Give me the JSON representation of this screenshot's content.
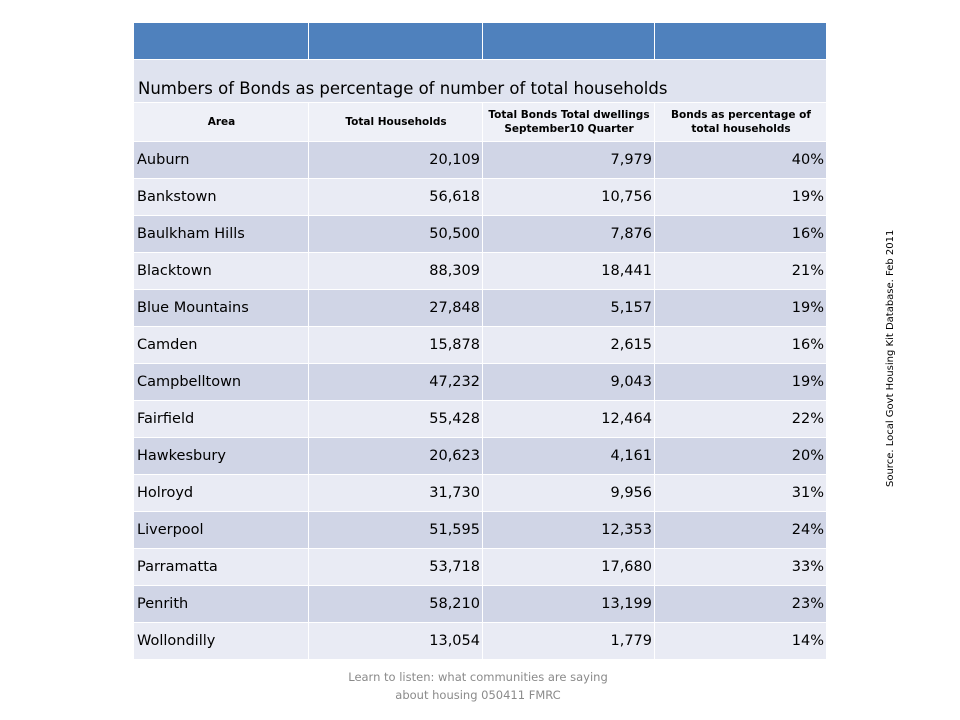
{
  "table": {
    "title": "Numbers of Bonds as percentage of number of total households",
    "headers": [
      "Area",
      "Total Households",
      "Total Bonds Total dwellings September10 Quarter",
      "Bonds as percentage of total households"
    ],
    "rows": [
      {
        "area": "Auburn",
        "households": "20,109",
        "bonds": "7,979",
        "pct": "40%"
      },
      {
        "area": "Bankstown",
        "households": "56,618",
        "bonds": "10,756",
        "pct": "19%"
      },
      {
        "area": "Baulkham Hills",
        "households": "50,500",
        "bonds": "7,876",
        "pct": "16%"
      },
      {
        "area": "Blacktown",
        "households": "88,309",
        "bonds": "18,441",
        "pct": "21%"
      },
      {
        "area": "Blue Mountains",
        "households": "27,848",
        "bonds": "5,157",
        "pct": "19%"
      },
      {
        "area": "Camden",
        "households": "15,878",
        "bonds": "2,615",
        "pct": "16%"
      },
      {
        "area": "Campbelltown",
        "households": "47,232",
        "bonds": "9,043",
        "pct": "19%"
      },
      {
        "area": "Fairfield",
        "households": "55,428",
        "bonds": "12,464",
        "pct": "22%"
      },
      {
        "area": "Hawkesbury",
        "households": "20,623",
        "bonds": "4,161",
        "pct": "20%"
      },
      {
        "area": "Holroyd",
        "households": "31,730",
        "bonds": "9,956",
        "pct": "31%"
      },
      {
        "area": "Liverpool",
        "households": "51,595",
        "bonds": "12,353",
        "pct": "24%"
      },
      {
        "area": "Parramatta",
        "households": "53,718",
        "bonds": "17,680",
        "pct": "33%"
      },
      {
        "area": "Penrith",
        "households": "58,210",
        "bonds": "13,199",
        "pct": "23%"
      },
      {
        "area": "Wollondilly",
        "households": "13,054",
        "bonds": "1,779",
        "pct": "14%"
      }
    ]
  },
  "source_note": "Source. Local Govt Housing Kit Database. Feb 2011",
  "footer": "Learn to listen: what communities are saying about housing 050411 FMRC",
  "colors": {
    "header_blue": "#4f81bd",
    "row_dark": "#d0d5e6",
    "row_light": "#e9ebf4",
    "footer_gray": "#8a8a8a"
  }
}
